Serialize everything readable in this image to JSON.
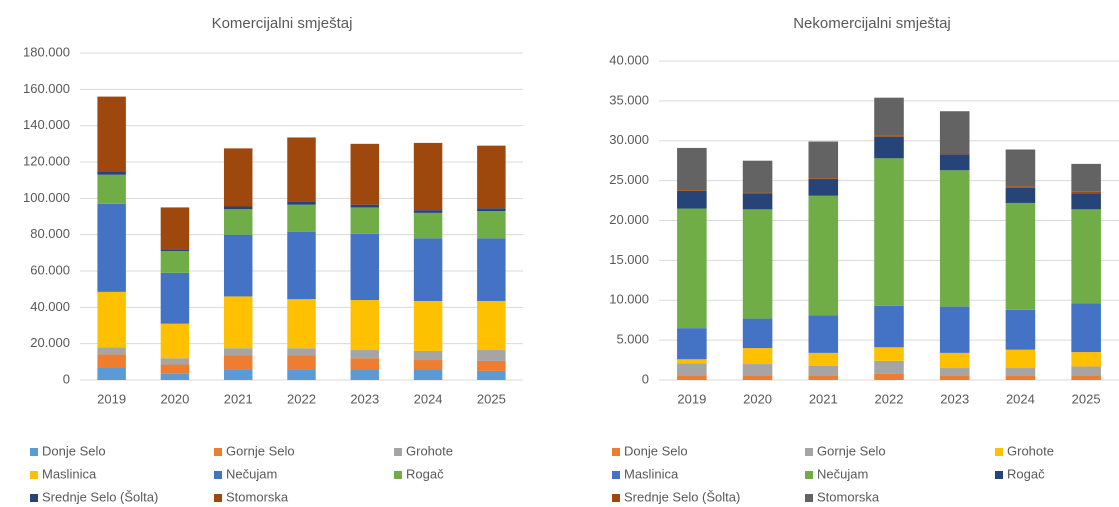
{
  "chart_data": [
    {
      "type": "stacked_bar",
      "title": "Komercijalni smještaj",
      "categories": [
        "2019",
        "2020",
        "2021",
        "2022",
        "2023",
        "2024",
        "2025"
      ],
      "ylim": [
        0,
        180000
      ],
      "yticks": [
        0,
        {
          "value": 20000,
          "label": "20.000"
        },
        {
          "value": 40000,
          "label": "40.000"
        },
        {
          "value": 60000,
          "label": "60.000"
        },
        {
          "value": 80000,
          "label": "80.000"
        },
        {
          "value": 100000,
          "label": "100.000"
        },
        {
          "value": 120000,
          "label": "120.000"
        },
        {
          "value": 140000,
          "label": "140.000"
        },
        {
          "value": 160000,
          "label": "160.000"
        },
        {
          "value": 180000,
          "label": "180.000"
        }
      ],
      "grid": true,
      "series": [
        {
          "name": "Donje Selo",
          "color": "#5b9bd5",
          "values": [
            6600,
            3500,
            6000,
            6000,
            5500,
            5500,
            5000
          ]
        },
        {
          "name": "Gornje Selo",
          "color": "#ed7d31",
          "values": [
            7400,
            5000,
            7500,
            7500,
            6500,
            5500,
            5500
          ]
        },
        {
          "name": "Grohote",
          "color": "#a5a5a5",
          "values": [
            4000,
            3500,
            4000,
            4000,
            4500,
            5000,
            6000
          ]
        },
        {
          "name": "Maslinica",
          "color": "#ffc000",
          "values": [
            30500,
            19000,
            28500,
            27000,
            27500,
            27500,
            27000
          ]
        },
        {
          "name": "Nečujam",
          "color": "#4472c4",
          "values": [
            48500,
            28000,
            34000,
            37000,
            36500,
            34500,
            34500
          ]
        },
        {
          "name": "Rogač",
          "color": "#70ad47",
          "values": [
            16000,
            12000,
            14000,
            15000,
            14500,
            14000,
            15000
          ]
        },
        {
          "name": "Srednje Selo (Šolta)",
          "color": "#264478",
          "values": [
            1500,
            1000,
            1500,
            1500,
            1500,
            1500,
            1500
          ]
        },
        {
          "name": "Stomorska",
          "color": "#9e480e",
          "values": [
            41500,
            23000,
            32000,
            35500,
            33500,
            37000,
            34500
          ]
        }
      ]
    },
    {
      "type": "stacked_bar",
      "title": "Nekomercijalni smještaj",
      "categories": [
        "2019",
        "2020",
        "2021",
        "2022",
        "2023",
        "2024",
        "2025"
      ],
      "ylim": [
        0,
        40000
      ],
      "yticks": [
        0,
        {
          "value": 5000,
          "label": "5.000"
        },
        {
          "value": 10000,
          "label": "10.000"
        },
        {
          "value": 15000,
          "label": "15.000"
        },
        {
          "value": 20000,
          "label": "20.000"
        },
        {
          "value": 25000,
          "label": "25.000"
        },
        {
          "value": 30000,
          "label": "30.000"
        },
        {
          "value": 35000,
          "label": "35.000"
        },
        {
          "value": 40000,
          "label": "40.000"
        }
      ],
      "grid": true,
      "series": [
        {
          "name": "Donje Selo",
          "color": "#ed7d31",
          "values": [
            600,
            600,
            600,
            800,
            600,
            600,
            600
          ]
        },
        {
          "name": "Gornje Selo",
          "color": "#a5a5a5",
          "values": [
            1500,
            1400,
            1200,
            1600,
            900,
            900,
            1100
          ]
        },
        {
          "name": "Grohote",
          "color": "#ffc000",
          "values": [
            500,
            2000,
            1600,
            1700,
            1900,
            2300,
            1800
          ]
        },
        {
          "name": "Maslinica",
          "color": "#4472c4",
          "values": [
            3900,
            3700,
            4700,
            5200,
            5800,
            5000,
            6100
          ]
        },
        {
          "name": "Nečujam",
          "color": "#70ad47",
          "values": [
            15000,
            13700,
            15000,
            18500,
            17100,
            13400,
            11800
          ]
        },
        {
          "name": "Rogač",
          "color": "#264478",
          "values": [
            2200,
            2000,
            2100,
            2700,
            2000,
            1900,
            2000
          ]
        },
        {
          "name": "Srednje Selo (Šolta)",
          "color": "#9e480e",
          "values": [
            100,
            100,
            100,
            200,
            100,
            200,
            200
          ]
        },
        {
          "name": "Stomorska",
          "color": "#636363",
          "values": [
            5300,
            4000,
            4600,
            4700,
            5300,
            4600,
            3500
          ]
        }
      ]
    }
  ]
}
